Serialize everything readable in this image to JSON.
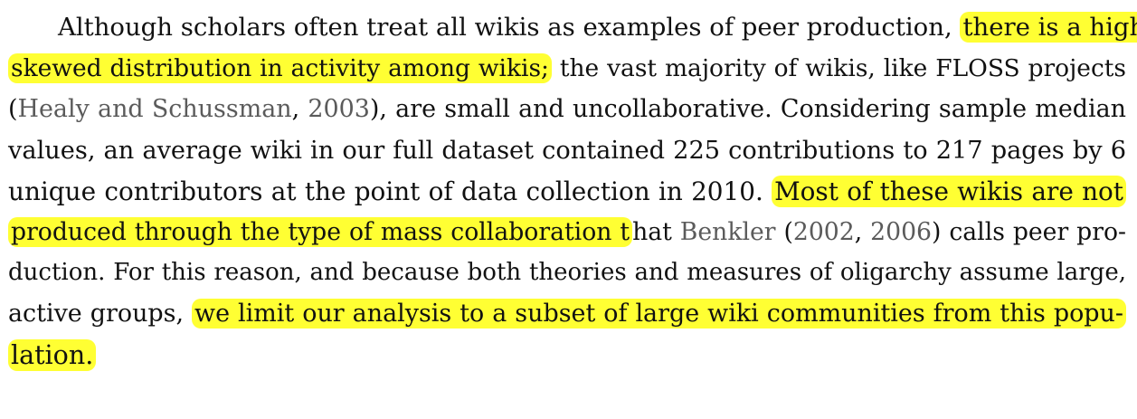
{
  "paragraph": {
    "lines": [
      {
        "text_before": "Although scholars often treat all wikis as examples of peer production, ",
        "highlight_1": "there is a highly"
      },
      {
        "highlight_1": "skewed distribution in activity among wikis;",
        "text_after": " the vast majority of wikis, like FLOSS projects"
      },
      {
        "text_before": "(",
        "cite_1": "Healy and Schussman",
        "text_mid": ", ",
        "cite_2": "2003",
        "text_after": "), are small and uncollaborative. Considering sample median"
      },
      {
        "text": "values, an average wiki in our full dataset contained 225 contributions to 217 pages by 6"
      },
      {
        "text_before": "unique contributors at the point of data collection in 2010. ",
        "highlight_1": "Most of these wikis are not"
      },
      {
        "highlight_1": "produced through the type of mass collaboration t",
        "text_mid": "hat ",
        "cite_1": "Benkler",
        "text_mid2": " (",
        "cite_2": "2002",
        "text_mid3": ", ",
        "cite_3": "2006",
        "text_after": ") calls peer pro-"
      },
      {
        "text": "duction. For this reason, and because both theories and measures of oligarchy assume large,"
      },
      {
        "text_before": "active groups, ",
        "highlight_1": "we limit our analysis to a subset of large wiki communities from this popu-"
      },
      {
        "highlight_1": "lation."
      }
    ]
  },
  "colors": {
    "highlight": "#ffff33",
    "text": "#111111",
    "citation": "#5b5b5b",
    "background": "#ffffff"
  }
}
